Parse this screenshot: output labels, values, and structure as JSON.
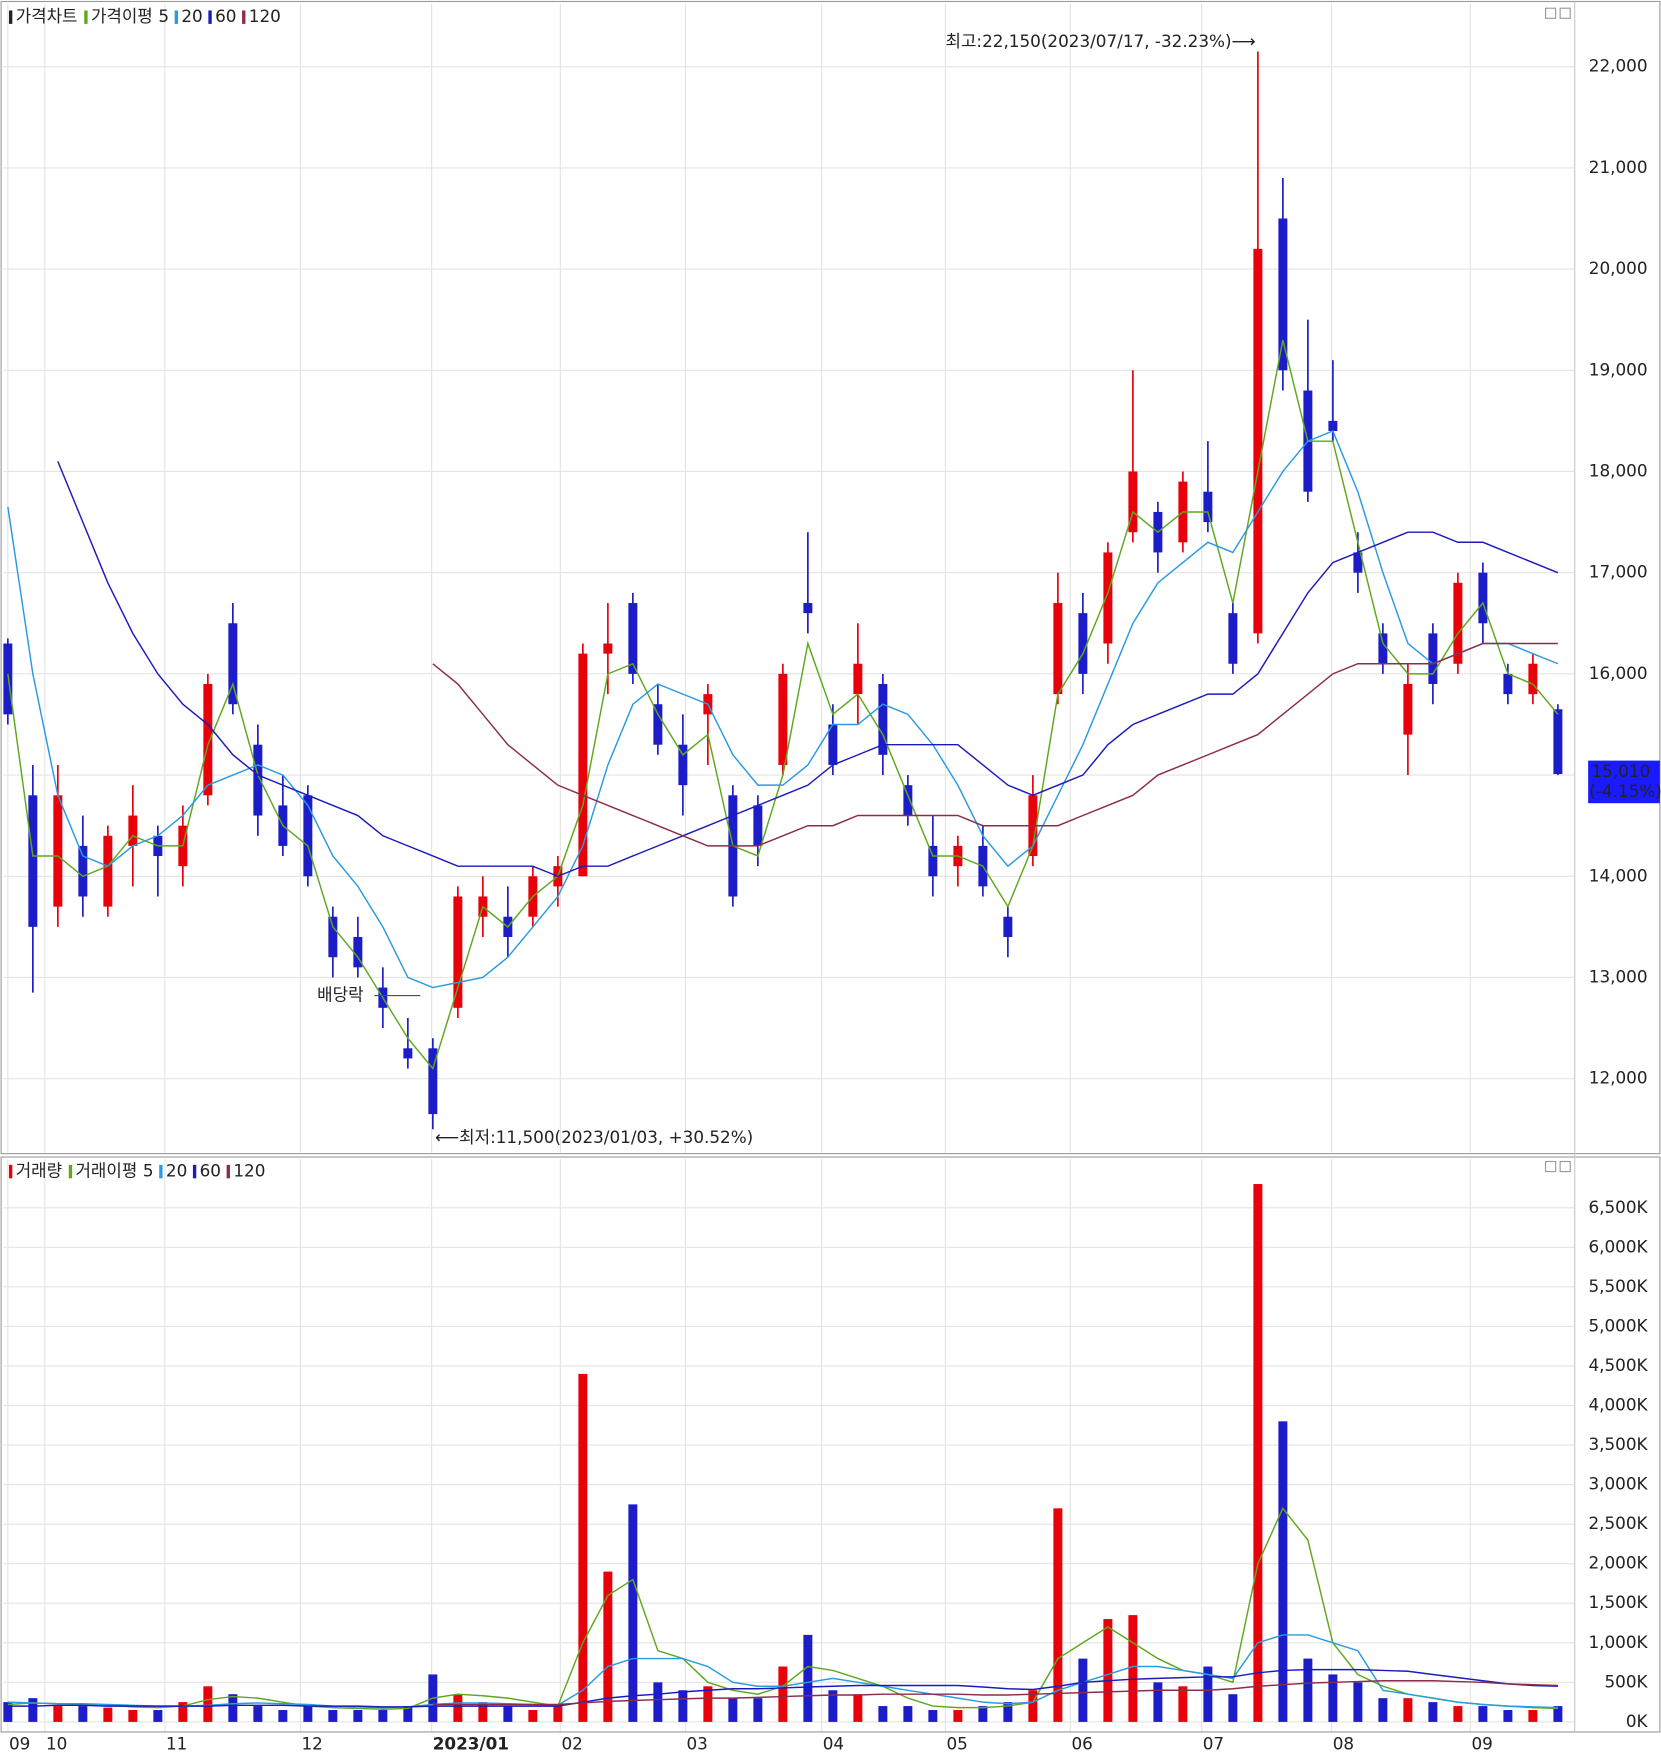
{
  "chart_data": [
    {
      "type": "candlestick",
      "title": "가격차트",
      "ma_label": "가격이평",
      "up_color": "#e8000b",
      "down_color": "#1c1cc8",
      "ohlc": [
        [
          16300,
          16350,
          15500,
          15600
        ],
        [
          14800,
          15100,
          12850,
          13500
        ],
        [
          13700,
          15100,
          13500,
          14800
        ],
        [
          14300,
          14600,
          13600,
          13800
        ],
        [
          13700,
          14500,
          13600,
          14400
        ],
        [
          14300,
          14900,
          13900,
          14600
        ],
        [
          14400,
          14500,
          13800,
          14200
        ],
        [
          14100,
          14700,
          13900,
          14500
        ],
        [
          14800,
          16000,
          14700,
          15900
        ],
        [
          16500,
          16700,
          15600,
          15700
        ],
        [
          15300,
          15500,
          14400,
          14600
        ],
        [
          14700,
          15000,
          14200,
          14300
        ],
        [
          14800,
          14900,
          13900,
          14000
        ],
        [
          13600,
          13700,
          13000,
          13200
        ],
        [
          13400,
          13600,
          13000,
          13100
        ],
        [
          12900,
          13100,
          12500,
          12700
        ],
        [
          12300,
          12600,
          12100,
          12200
        ],
        [
          12300,
          12400,
          11500,
          11650
        ],
        [
          12700,
          13900,
          12600,
          13800
        ],
        [
          13600,
          14000,
          13400,
          13800
        ],
        [
          13600,
          13900,
          13200,
          13400
        ],
        [
          13600,
          14100,
          13500,
          14000
        ],
        [
          13900,
          14200,
          13700,
          14100
        ],
        [
          14000,
          16300,
          14000,
          16200
        ],
        [
          16200,
          16700,
          15800,
          16300
        ],
        [
          16700,
          16800,
          15900,
          16000
        ],
        [
          15700,
          15900,
          15200,
          15300
        ],
        [
          15300,
          15600,
          14600,
          14900
        ],
        [
          15600,
          15900,
          15100,
          15800
        ],
        [
          14800,
          14900,
          13700,
          13800
        ],
        [
          14700,
          14800,
          14100,
          14300
        ],
        [
          15100,
          16100,
          15000,
          16000
        ],
        [
          16700,
          17400,
          16400,
          16600
        ],
        [
          15500,
          15700,
          15000,
          15100
        ],
        [
          15800,
          16500,
          15500,
          16100
        ],
        [
          15900,
          16000,
          15000,
          15200
        ],
        [
          14900,
          15000,
          14500,
          14600
        ],
        [
          14300,
          14600,
          13800,
          14000
        ],
        [
          14100,
          14400,
          13900,
          14300
        ],
        [
          14300,
          14500,
          13800,
          13900
        ],
        [
          13600,
          13700,
          13200,
          13400
        ],
        [
          14200,
          15000,
          14100,
          14800
        ],
        [
          15800,
          17000,
          15700,
          16700
        ],
        [
          16600,
          16800,
          15800,
          16000
        ],
        [
          16300,
          17300,
          16100,
          17200
        ],
        [
          17400,
          19000,
          17300,
          18000
        ],
        [
          17600,
          17700,
          17000,
          17200
        ],
        [
          17300,
          18000,
          17200,
          17900
        ],
        [
          17800,
          18300,
          17400,
          17500
        ],
        [
          16600,
          16700,
          16000,
          16100
        ],
        [
          16400,
          22150,
          16300,
          20200
        ],
        [
          20500,
          20900,
          18800,
          19000
        ],
        [
          18800,
          19500,
          17700,
          17800
        ],
        [
          18500,
          19100,
          18300,
          18400
        ],
        [
          17200,
          17400,
          16800,
          17000
        ],
        [
          16400,
          16500,
          16000,
          16100
        ],
        [
          15400,
          16100,
          15000,
          15900
        ],
        [
          16400,
          16500,
          15700,
          15900
        ],
        [
          16100,
          17000,
          16000,
          16900
        ],
        [
          17000,
          17100,
          16300,
          16500
        ],
        [
          16000,
          16100,
          15700,
          15800
        ],
        [
          15800,
          16200,
          15700,
          16100
        ],
        [
          15650,
          15700,
          15000,
          15010
        ]
      ],
      "series": [
        {
          "name": "5",
          "color": "#5fa81e",
          "values": [
            16000,
            14200,
            14200,
            14000,
            14100,
            14400,
            14300,
            14300,
            15300,
            15900,
            15000,
            14500,
            14300,
            13500,
            13200,
            12800,
            12400,
            12100,
            12900,
            13700,
            13500,
            13800,
            14000,
            14700,
            16000,
            16100,
            15600,
            15200,
            15400,
            14300,
            14200,
            15000,
            16300,
            15600,
            15800,
            15400,
            14800,
            14200,
            14200,
            14100,
            13700,
            14300,
            15800,
            16200,
            16800,
            17600,
            17400,
            17600,
            17600,
            16700,
            18000,
            19300,
            18300,
            18300,
            17300,
            16300,
            16000,
            16000,
            16400,
            16700,
            16000,
            15900,
            15600
          ]
        },
        {
          "name": "20",
          "color": "#2a9be0",
          "values": [
            17650,
            16000,
            14800,
            14200,
            14100,
            14300,
            14400,
            14600,
            14900,
            15000,
            15100,
            15000,
            14700,
            14200,
            13900,
            13500,
            13000,
            12900,
            12950,
            13000,
            13200,
            13500,
            13800,
            14300,
            15100,
            15700,
            15900,
            15800,
            15700,
            15200,
            14900,
            14900,
            15100,
            15500,
            15500,
            15700,
            15600,
            15300,
            14900,
            14400,
            14100,
            14300,
            14800,
            15300,
            15900,
            16500,
            16900,
            17100,
            17300,
            17200,
            17600,
            18000,
            18300,
            18400,
            17800,
            17000,
            16300,
            16100,
            16200,
            16300,
            16300,
            16200,
            16100
          ]
        },
        {
          "name": "60",
          "color": "#1b1bbd",
          "values": [
            null,
            null,
            18100,
            17500,
            16900,
            16400,
            16000,
            15700,
            15500,
            15200,
            15000,
            14900,
            14800,
            14700,
            14600,
            14400,
            14300,
            14200,
            14100,
            14100,
            14100,
            14100,
            14000,
            14100,
            14100,
            14200,
            14300,
            14400,
            14500,
            14600,
            14700,
            14800,
            14900,
            15100,
            15200,
            15300,
            15300,
            15300,
            15300,
            15100,
            14900,
            14800,
            14900,
            15000,
            15300,
            15500,
            15600,
            15700,
            15800,
            15800,
            16000,
            16400,
            16800,
            17100,
            17200,
            17300,
            17400,
            17400,
            17300,
            17300,
            17200,
            17100,
            17000
          ]
        },
        {
          "name": "120",
          "color": "#8b2c4c",
          "values": [
            null,
            null,
            null,
            null,
            null,
            null,
            null,
            null,
            null,
            null,
            null,
            null,
            null,
            null,
            null,
            null,
            null,
            16100,
            15900,
            15600,
            15300,
            15100,
            14900,
            14800,
            14700,
            14600,
            14500,
            14400,
            14300,
            14300,
            14300,
            14400,
            14500,
            14500,
            14600,
            14600,
            14600,
            14600,
            14600,
            14500,
            14500,
            14500,
            14500,
            14600,
            14700,
            14800,
            15000,
            15100,
            15200,
            15300,
            15400,
            15600,
            15800,
            16000,
            16100,
            16100,
            16100,
            16100,
            16200,
            16300,
            16300,
            16300,
            16300
          ]
        }
      ],
      "ylim": [
        11270,
        22600
      ],
      "yticks": [
        {
          "value": 12000,
          "label": "12,000"
        },
        {
          "value": 13000,
          "label": "13,000"
        },
        {
          "value": 14000,
          "label": "14,000"
        },
        {
          "value": 15000,
          "label": "15,000"
        },
        {
          "value": 16000,
          "label": "16,000"
        },
        {
          "value": 17000,
          "label": "17,000"
        },
        {
          "value": 18000,
          "label": "18,000"
        },
        {
          "value": 19000,
          "label": "19,000"
        },
        {
          "value": 20000,
          "label": "20,000"
        },
        {
          "value": 21000,
          "label": "21,000"
        },
        {
          "value": 22000,
          "label": "22,000"
        }
      ],
      "high_label": "최고:22,150(2023/07/17, -32.23%)⟶",
      "low_label": "⟵최저:11,500(2023/01/03, +30.52%)",
      "dividend_label": "배당락",
      "last_label": "15,010",
      "last_change": "(-4.15%)",
      "grid": true
    },
    {
      "type": "bar",
      "title": "거래량",
      "ma_label": "거래이평",
      "values": [
        250,
        300,
        200,
        200,
        180,
        150,
        150,
        250,
        450,
        350,
        200,
        150,
        200,
        150,
        150,
        150,
        200,
        600,
        350,
        250,
        200,
        150,
        200,
        4400,
        1900,
        2750,
        500,
        400,
        450,
        300,
        300,
        700,
        1100,
        400,
        350,
        200,
        200,
        150,
        150,
        200,
        250,
        400,
        2700,
        800,
        1300,
        1350,
        500,
        450,
        700,
        350,
        6800,
        3800,
        800,
        600,
        500,
        300,
        300,
        250,
        200,
        200,
        150,
        150,
        200
      ],
      "series": [
        {
          "name": "5",
          "color": "#5fa81e",
          "values": [
            220,
            240,
            230,
            220,
            210,
            190,
            180,
            200,
            280,
            320,
            300,
            250,
            200,
            180,
            170,
            160,
            170,
            300,
            350,
            330,
            300,
            250,
            200,
            1000,
            1600,
            1800,
            900,
            800,
            500,
            400,
            350,
            450,
            700,
            650,
            550,
            450,
            300,
            200,
            180,
            180,
            200,
            250,
            800,
            1000,
            1200,
            1000,
            800,
            650,
            600,
            500,
            2000,
            2700,
            2300,
            1000,
            600,
            450,
            350,
            300,
            250,
            220,
            200,
            180,
            170
          ]
        },
        {
          "name": "20",
          "color": "#2a9be0",
          "values": [
            250,
            240,
            230,
            230,
            220,
            210,
            200,
            200,
            210,
            230,
            240,
            230,
            220,
            200,
            190,
            180,
            190,
            220,
            240,
            240,
            230,
            220,
            210,
            400,
            700,
            800,
            800,
            800,
            700,
            500,
            450,
            450,
            500,
            550,
            500,
            450,
            400,
            350,
            300,
            250,
            230,
            250,
            400,
            500,
            600,
            700,
            700,
            650,
            600,
            550,
            1000,
            1100,
            1100,
            1000,
            900,
            400,
            350,
            300,
            250,
            220,
            200,
            190,
            180
          ]
        },
        {
          "name": "60",
          "color": "#1b1bbd",
          "values": [
            200,
            200,
            210,
            210,
            200,
            200,
            200,
            200,
            200,
            210,
            210,
            210,
            200,
            200,
            200,
            190,
            190,
            200,
            200,
            200,
            200,
            200,
            200,
            250,
            300,
            330,
            350,
            380,
            400,
            420,
            420,
            430,
            440,
            450,
            460,
            460,
            460,
            460,
            460,
            440,
            420,
            410,
            450,
            500,
            520,
            540,
            550,
            560,
            570,
            570,
            620,
            650,
            660,
            660,
            660,
            650,
            640,
            600,
            560,
            520,
            480,
            460,
            450
          ]
        },
        {
          "name": "120",
          "color": "#8b2c4c",
          "values": [
            null,
            null,
            null,
            null,
            null,
            null,
            null,
            null,
            null,
            null,
            null,
            null,
            null,
            null,
            null,
            null,
            null,
            220,
            220,
            220,
            220,
            220,
            220,
            240,
            260,
            270,
            280,
            290,
            300,
            300,
            310,
            320,
            330,
            340,
            340,
            350,
            350,
            350,
            350,
            340,
            340,
            350,
            360,
            370,
            380,
            390,
            400,
            400,
            400,
            420,
            450,
            470,
            490,
            500,
            510,
            520,
            520,
            520,
            510,
            500,
            480,
            470,
            460
          ]
        }
      ],
      "ylim": [
        0,
        7000
      ],
      "yticks": [
        {
          "value": 0,
          "label": "0K"
        },
        {
          "value": 500,
          "label": "500K"
        },
        {
          "value": 1000,
          "label": "1,000K"
        },
        {
          "value": 1500,
          "label": "1,500K"
        },
        {
          "value": 2000,
          "label": "2,000K"
        },
        {
          "value": 2500,
          "label": "2,500K"
        },
        {
          "value": 3000,
          "label": "3,000K"
        },
        {
          "value": 3500,
          "label": "3,500K"
        },
        {
          "value": 4000,
          "label": "4,000K"
        },
        {
          "value": 4500,
          "label": "4,500K"
        },
        {
          "value": 5000,
          "label": "5,000K"
        },
        {
          "value": 5500,
          "label": "5,500K"
        },
        {
          "value": 6000,
          "label": "6,000K"
        },
        {
          "value": 6500,
          "label": "6,500K"
        }
      ],
      "xticks": [
        {
          "value": 0,
          "label": "09"
        },
        {
          "value": 1.48,
          "label": "10"
        },
        {
          "value": 6.28,
          "label": "11"
        },
        {
          "value": 11.7,
          "label": "12"
        },
        {
          "value": 16.95,
          "label": "2023/01"
        },
        {
          "value": 22.1,
          "label": "02"
        },
        {
          "value": 27.1,
          "label": "03"
        },
        {
          "value": 32.55,
          "label": "04"
        },
        {
          "value": 37.5,
          "label": "05"
        },
        {
          "value": 42.5,
          "label": "06"
        },
        {
          "value": 47.75,
          "label": "07"
        },
        {
          "value": 52.95,
          "label": "08"
        },
        {
          "value": 58.5,
          "label": "09"
        }
      ],
      "grid": true
    }
  ]
}
